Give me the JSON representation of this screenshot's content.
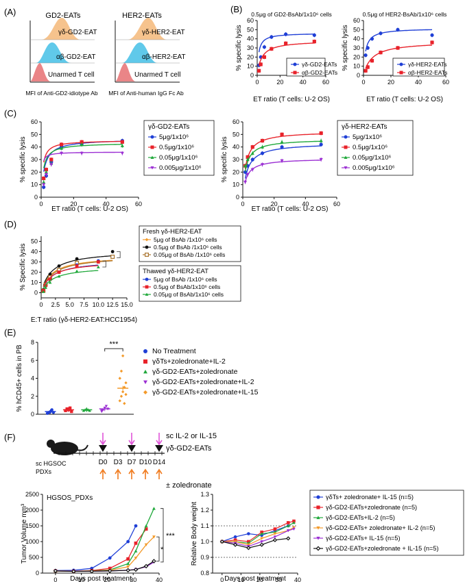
{
  "figure": {
    "panel_labels": {
      "A": "(A)",
      "B": "(B)",
      "C": "(C)",
      "D": "(D)",
      "E": "(E)",
      "F": "(F)"
    }
  },
  "panel_a": {
    "left": {
      "title": "GD2-EATs",
      "xlabel": "MFI of Anti-GD2-idiotype Ab",
      "labels": [
        "γδ-GD2-EAT",
        "αβ-GD2-EAT",
        "Unarmed T cell"
      ]
    },
    "right": {
      "title": "HER2-EATs",
      "xlabel": "MFI of Anti-human IgG Fc Ab",
      "labels": [
        "γδ-HER2-EAT",
        "αβ-HER2-EAT",
        "Unarmed T cell"
      ]
    },
    "colors": {
      "gd": "#f5b979",
      "ab": "#4fc3e8",
      "unarmed": "#e8787a"
    }
  },
  "chart_data": [
    {
      "id": "B1",
      "type": "scatter",
      "title": "0.5μg of GD2-BsAb/1x10⁶ cells",
      "xlabel": "ET ratio (T cells: U-2 OS)",
      "ylabel": "% specific lysis",
      "xlim": [
        0,
        60
      ],
      "ylim": [
        0,
        60
      ],
      "xticks": [
        "0",
        "20",
        "40",
        "60"
      ],
      "yticks": [
        "0",
        "10",
        "20",
        "30",
        "40",
        "50",
        "60"
      ],
      "series": [
        {
          "name": "γδ-GD2-EATs",
          "color": "#1f3fd6",
          "marker": "circle",
          "x": [
            1.56,
            3.125,
            6.25,
            12.5,
            25,
            50
          ],
          "y": [
            11,
            20,
            31,
            42,
            45,
            44
          ]
        },
        {
          "name": "αβ-GD2-EATs",
          "color": "#e8222a",
          "marker": "square",
          "x": [
            1.56,
            3.125,
            6.25,
            12.5,
            25,
            50
          ],
          "y": [
            5,
            12,
            20,
            29,
            35,
            37
          ]
        }
      ]
    },
    {
      "id": "B2",
      "type": "scatter",
      "title": "0.5μg of HER2-BsAb/1x10⁶ cells",
      "xlabel": "ET ratio (T cells: U-2 OS)",
      "ylabel": "% specific lysis",
      "xlim": [
        0,
        60
      ],
      "ylim": [
        0,
        60
      ],
      "xticks": [
        "0",
        "20",
        "40",
        "60"
      ],
      "yticks": [
        "0",
        "10",
        "20",
        "30",
        "40",
        "50",
        "60"
      ],
      "series": [
        {
          "name": "γδ-HER2-EATs",
          "color": "#1f3fd6",
          "marker": "circle",
          "x": [
            1.56,
            3.125,
            6.25,
            12.5,
            25,
            50
          ],
          "y": [
            22,
            30,
            40,
            46,
            50,
            44
          ]
        },
        {
          "name": "αβ-HER2-EATs",
          "color": "#e8222a",
          "marker": "square",
          "x": [
            1.56,
            3.125,
            6.25,
            12.5,
            25,
            50
          ],
          "y": [
            5,
            9,
            16,
            25,
            30,
            36
          ]
        }
      ]
    },
    {
      "id": "C1",
      "type": "scatter",
      "legend_title": "γδ-GD2-EATs",
      "xlabel": "ET ratio (T cells: U-2 OS)",
      "ylabel": "% specific lysis",
      "xlim": [
        0,
        60
      ],
      "ylim": [
        0,
        60
      ],
      "xticks": [
        "0",
        "20",
        "40",
        "60"
      ],
      "yticks": [
        "0",
        "10",
        "20",
        "30",
        "40",
        "50",
        "60"
      ],
      "series": [
        {
          "name": "5μg/1x10⁶",
          "color": "#1f3fd6",
          "marker": "circle",
          "x": [
            1.56,
            3.125,
            6.25,
            12.5,
            25,
            50
          ],
          "y": [
            8,
            17,
            28,
            40,
            42,
            45
          ]
        },
        {
          "name": "0.5μg/1x10⁶",
          "color": "#e8222a",
          "marker": "square",
          "x": [
            1.56,
            3.125,
            6.25,
            12.5,
            25,
            50
          ],
          "y": [
            15,
            22,
            30,
            42,
            44,
            44
          ]
        },
        {
          "name": "0.05μg/1x10⁶",
          "color": "#1fa83a",
          "marker": "triangle",
          "x": [
            1.56,
            3.125,
            6.25,
            12.5,
            25,
            50
          ],
          "y": [
            12,
            20,
            27,
            39,
            42,
            41
          ]
        },
        {
          "name": "0.005μg/1x10⁶",
          "color": "#9b2fd3",
          "marker": "triangle-down",
          "x": [
            1.56,
            3.125,
            6.25,
            12.5,
            25,
            50
          ],
          "y": [
            10,
            18,
            26,
            35,
            35,
            35
          ]
        }
      ]
    },
    {
      "id": "C2",
      "type": "scatter",
      "legend_title": "γδ-HER2-EATs",
      "xlabel": "ET ratio (T cells: U-2 OS)",
      "ylabel": "% specific lysis",
      "xlim": [
        0,
        60
      ],
      "ylim": [
        0,
        60
      ],
      "xticks": [
        "0",
        "20",
        "40",
        "60"
      ],
      "yticks": [
        "0",
        "10",
        "20",
        "30",
        "40",
        "50",
        "60"
      ],
      "series": [
        {
          "name": "5μg/1x10⁶",
          "color": "#1f3fd6",
          "marker": "circle",
          "x": [
            1.56,
            3.125,
            6.25,
            12.5,
            25,
            50
          ],
          "y": [
            20,
            25,
            30,
            35,
            40,
            42
          ]
        },
        {
          "name": "0.5μg/1x10⁶",
          "color": "#e8222a",
          "marker": "square",
          "x": [
            1.56,
            3.125,
            6.25,
            12.5,
            25,
            50
          ],
          "y": [
            25,
            32,
            40,
            45,
            50,
            51
          ]
        },
        {
          "name": "0.05μg/1x10⁶",
          "color": "#1fa83a",
          "marker": "triangle",
          "x": [
            1.56,
            3.125,
            6.25,
            12.5,
            25,
            50
          ],
          "y": [
            25,
            30,
            35,
            40,
            44,
            45
          ]
        },
        {
          "name": "0.005μg/1x10⁶",
          "color": "#9b2fd3",
          "marker": "triangle-down",
          "x": [
            1.56,
            3.125,
            6.25,
            12.5,
            25,
            50
          ],
          "y": [
            12,
            18,
            22,
            26,
            29,
            30
          ]
        }
      ]
    },
    {
      "id": "D",
      "type": "scatter",
      "xlabel": "E:T ratio (γδ-HER2-EAT:HCC1954)",
      "ylabel": "% Specific lysis",
      "xlim": [
        0,
        15
      ],
      "ylim": [
        -5,
        55
      ],
      "xticks": [
        "0",
        "2.5",
        "5.0",
        "7.5",
        "10.0",
        "12.5",
        "15.0"
      ],
      "yticks": [
        "0",
        "10",
        "20",
        "30",
        "40",
        "50"
      ],
      "legend_groups": [
        {
          "title": "Fresh γδ-HER2-EAT",
          "items": [
            "5μg of BsAb /1x10⁶ cells",
            "0.5μg of BsAb /1x10⁶ cells",
            "0.05μg of BsAb /1x10⁶ cells"
          ]
        },
        {
          "title": "Thawed γδ-HER2-EAT",
          "items": [
            "5μg of BsAb /1x10⁶ cells",
            "0.5μg of BsAb/1x10⁶ cells",
            "0.05μg of BsAb/1x10⁶ cells"
          ]
        }
      ],
      "series": [
        {
          "name": "Fresh 5μg",
          "color": "#f39a2a",
          "marker": "diamond",
          "x": [
            0.39,
            0.78,
            1.56,
            3.125,
            6.25,
            12.5
          ],
          "y": [
            2,
            8,
            15,
            23,
            30,
            35
          ]
        },
        {
          "name": "Fresh 0.5μg",
          "color": "#111111",
          "marker": "circle",
          "x": [
            0.39,
            0.78,
            1.56,
            3.125,
            6.25,
            12.5
          ],
          "y": [
            3,
            9,
            18,
            26,
            33,
            40
          ]
        },
        {
          "name": "Fresh 0.05μg",
          "color": "#a9742e",
          "marker": "square-open",
          "x": [
            0.39,
            0.78,
            1.56,
            3.125,
            6.25,
            12.5
          ],
          "y": [
            2,
            8,
            15,
            22,
            29,
            35
          ]
        },
        {
          "name": "Thawed 5μg",
          "color": "#1f3fd6",
          "marker": "circle",
          "x": [
            0.39,
            0.78,
            1.56,
            3.125,
            6.25,
            10
          ],
          "y": [
            2,
            7,
            13,
            20,
            27,
            31
          ]
        },
        {
          "name": "Thawed 0.5μg",
          "color": "#e8222a",
          "marker": "square",
          "x": [
            0.39,
            0.78,
            1.56,
            3.125,
            6.25,
            10
          ],
          "y": [
            2,
            7,
            13,
            20,
            26,
            30
          ]
        },
        {
          "name": "Thawed 0.05μg",
          "color": "#1fa83a",
          "marker": "triangle",
          "x": [
            0.39,
            0.78,
            1.56,
            3.125,
            6.25,
            10
          ],
          "y": [
            1,
            5,
            10,
            16,
            21,
            25
          ]
        }
      ]
    },
    {
      "id": "E",
      "type": "scatter",
      "ylabel": "% hCD45+ cells in PB",
      "ylim": [
        0,
        8
      ],
      "yticks": [
        "0",
        "2",
        "4",
        "6",
        "8"
      ],
      "significance": "***",
      "series": [
        {
          "name": "No Treatment",
          "color": "#1f3fd6",
          "marker": "circle",
          "mean": 0.3,
          "points": [
            0.1,
            0.2,
            0.3,
            0.5,
            0.2
          ]
        },
        {
          "name": "γδTs+zoledronate+IL-2",
          "color": "#e8222a",
          "marker": "square",
          "mean": 0.5,
          "points": [
            0.4,
            0.6,
            0.5,
            0.7,
            0.3
          ]
        },
        {
          "name": "γδ-GD2-EATs+zoledronate",
          "color": "#1fa83a",
          "marker": "triangle",
          "mean": 0.5,
          "points": [
            0.4,
            0.5,
            0.6,
            0.5,
            0.4
          ]
        },
        {
          "name": "γδ-GD2-EATs+zoledronate+IL-2",
          "color": "#9b2fd3",
          "marker": "triangle-down",
          "mean": 0.6,
          "points": [
            0.3,
            0.5,
            0.7,
            0.9,
            0.6,
            0.4
          ]
        },
        {
          "name": "γδ-GD2-EATs+zoledronate+IL-15",
          "color": "#f39a2a",
          "marker": "diamond",
          "mean": 2.9,
          "points": [
            1.5,
            2.0,
            2.5,
            3.0,
            3.5,
            4.0,
            4.8,
            6.5,
            1.2,
            2.2
          ]
        }
      ]
    },
    {
      "id": "F1",
      "type": "line",
      "inner_title": "HGSOS_PDXs",
      "xlabel": "Days post treatment",
      "ylabel": "Tumor Volume mm³",
      "xlim": [
        -5,
        40
      ],
      "ylim": [
        0,
        2500
      ],
      "xticks": [
        "0",
        "10",
        "20",
        "30",
        "40"
      ],
      "yticks": [
        "0",
        "500",
        "1000",
        "1500",
        "2000",
        "2500"
      ],
      "significance": [
        "***",
        "*"
      ],
      "series": [
        {
          "name": "γδTs+ zoledronate+ IL-15",
          "color": "#1f3fd6",
          "marker": "circle",
          "x": [
            0,
            7,
            14,
            21,
            28,
            31
          ],
          "y": [
            80,
            90,
            150,
            480,
            1000,
            1500
          ]
        },
        {
          "name": "γδ-GD2-EATs+zoledronate",
          "color": "#e8222a",
          "marker": "square",
          "x": [
            0,
            7,
            14,
            21,
            28,
            31,
            35
          ],
          "y": [
            70,
            60,
            80,
            150,
            450,
            950,
            1400
          ]
        },
        {
          "name": "γδ-GD2-EATs+IL-2",
          "color": "#1fa83a",
          "marker": "triangle",
          "x": [
            0,
            7,
            14,
            21,
            28,
            31,
            35,
            38
          ],
          "y": [
            70,
            60,
            70,
            100,
            300,
            700,
            1500,
            2050
          ]
        },
        {
          "name": "γδ-GD2-EATs+ zoledronate+ IL-2",
          "color": "#f39a2a",
          "marker": "triangle-down",
          "x": [
            0,
            7,
            14,
            21,
            28,
            31,
            35,
            38
          ],
          "y": [
            70,
            60,
            70,
            90,
            200,
            480,
            900,
            1150
          ]
        },
        {
          "name": "γδ-GD2-EATs+ IL-15",
          "color": "#9b2fd3",
          "marker": "triangle-down",
          "x": [
            0,
            7,
            14,
            21,
            28,
            31,
            35,
            38
          ],
          "y": [
            70,
            60,
            60,
            70,
            90,
            120,
            200,
            350
          ]
        },
        {
          "name": "γδ-GD2-EATs+zoledronate + IL-15",
          "color": "#111111",
          "marker": "diamond-open",
          "x": [
            0,
            7,
            14,
            21,
            28,
            31,
            35,
            38
          ],
          "y": [
            70,
            55,
            60,
            70,
            90,
            110,
            220,
            380
          ]
        }
      ]
    },
    {
      "id": "F2",
      "type": "line",
      "xlabel": "Days post treatment",
      "ylabel": "Relative Body weight",
      "xlim": [
        -5,
        40
      ],
      "ylim": [
        0.8,
        1.3
      ],
      "xticks": [
        "0",
        "10",
        "20",
        "30",
        "40"
      ],
      "yticks": [
        "0.8",
        "0.9",
        "1.0",
        "1.1",
        "1.2",
        "1.3"
      ],
      "reference_lines": [
        0.9,
        1.1
      ],
      "series": [
        {
          "name": "γδTs+ zoledronate+ IL-15 (n=5)",
          "color": "#1f3fd6",
          "marker": "circle",
          "x": [
            0,
            7,
            14,
            21,
            28,
            35
          ],
          "y": [
            1.0,
            1.03,
            1.05,
            1.04,
            1.07,
            1.1
          ]
        },
        {
          "name": "γδ-GD2-EATs+zoledronate (n=5)",
          "color": "#e8222a",
          "marker": "square",
          "x": [
            0,
            7,
            14,
            21,
            28,
            35,
            38
          ],
          "y": [
            1.0,
            1.01,
            1.0,
            1.06,
            1.08,
            1.12,
            1.13
          ]
        },
        {
          "name": "γδ-GD2-EATs+IL-2 (n=5)",
          "color": "#1fa83a",
          "marker": "triangle",
          "x": [
            0,
            7,
            14,
            21,
            28,
            35,
            38
          ],
          "y": [
            1.0,
            1.0,
            0.99,
            1.05,
            1.06,
            1.1,
            1.12
          ]
        },
        {
          "name": "γδ-GD2-EATs+ zoledronate+ IL-2 (n=5)",
          "color": "#f39a2a",
          "marker": "triangle-down",
          "x": [
            0,
            7,
            14,
            21,
            28,
            35,
            38
          ],
          "y": [
            1.0,
            1.0,
            0.98,
            1.02,
            1.05,
            1.07,
            1.09
          ]
        },
        {
          "name": "γδ-GD2-EATs+ IL-15 (n=5)",
          "color": "#9b2fd3",
          "marker": "triangle-down",
          "x": [
            0,
            7,
            14,
            21,
            28,
            35,
            38
          ],
          "y": [
            1.0,
            0.99,
            0.97,
            1.0,
            1.03,
            1.07,
            1.08
          ]
        },
        {
          "name": "γδ-GD2-EATs+zoledronate + IL-15 (n=5)",
          "color": "#111111",
          "marker": "diamond-open",
          "x": [
            0,
            7,
            14,
            21,
            28,
            35
          ],
          "y": [
            1.0,
            0.98,
            0.96,
            0.98,
            1.01,
            1.02
          ]
        }
      ]
    }
  ],
  "panel_f_schema": {
    "cytokine_label": "sc IL-2 or IL-15",
    "cells_label": "γδ-GD2-EATs",
    "zol_label": "± zoledronate",
    "mouse_label_1": "sc HGSOC",
    "mouse_label_2": "PDXs",
    "days": [
      "D0",
      "D3",
      "D7",
      "D10",
      "D14"
    ]
  }
}
